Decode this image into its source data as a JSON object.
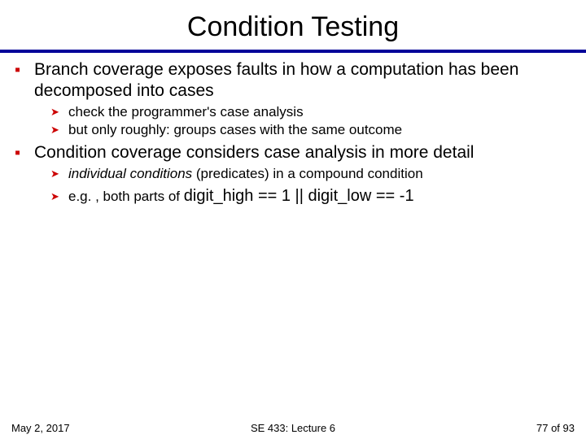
{
  "title": "Condition Testing",
  "colors": {
    "bullet": "#cc0000",
    "rule": "#000099",
    "text": "#000000",
    "background": "#ffffff"
  },
  "items": [
    {
      "text": "Branch coverage exposes faults in how a computation has been decomposed into cases",
      "sub": [
        {
          "text": "check the programmer's case analysis"
        },
        {
          "text": "but only roughly: groups cases with the same outcome"
        }
      ]
    },
    {
      "text": "Condition coverage considers case analysis in more detail",
      "sub": [
        {
          "prefix_italic": "individual conditions",
          "rest": " (predicates) in a compound condition"
        },
        {
          "prefix": "e.g. , both parts of ",
          "code": "digit_high == 1 || digit_low == -1"
        }
      ]
    }
  ],
  "footer": {
    "left": "May 2, 2017",
    "center": "SE 433: Lecture 6",
    "right": "77 of 93"
  }
}
